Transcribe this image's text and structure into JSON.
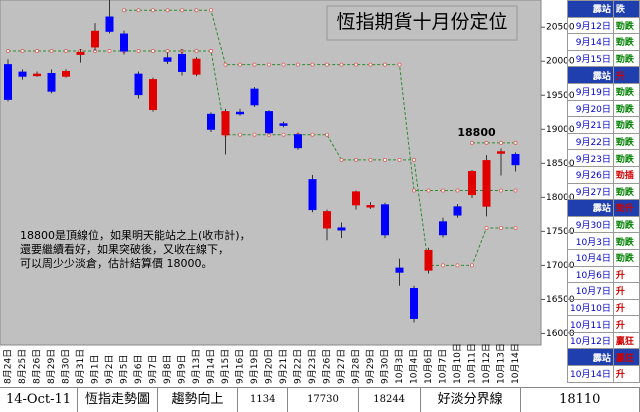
{
  "chart_data": {
    "type": "candlestick",
    "title": "恆指期貨十月份定位",
    "categories": [
      "8月24日",
      "8月25日",
      "8月26日",
      "8月29日",
      "8月30日",
      "8月31日",
      "9月1日",
      "9月2日",
      "9月5日",
      "9月6日",
      "9月7日",
      "9月8日",
      "9月9日",
      "9月13日",
      "9月14日",
      "9月15日",
      "9月16日",
      "9月19日",
      "9月20日",
      "9月21日",
      "9月22日",
      "9月23日",
      "9月26日",
      "9月27日",
      "9月28日",
      "9月29日",
      "9月30日",
      "10月3日",
      "10月4日",
      "10月6日",
      "10月7日",
      "10月10日",
      "10月11日",
      "10月12日",
      "10月13日",
      "10月14日"
    ],
    "open": [
      19950,
      19840,
      19790,
      19820,
      19780,
      20100,
      20210,
      20650,
      20400,
      19810,
      19290,
      20050,
      20100,
      19810,
      19220,
      18920,
      19250,
      19590,
      19260,
      19080,
      18920,
      18260,
      17550,
      17550,
      17890,
      17870,
      17890,
      16960,
      16660,
      16930,
      17640,
      17860,
      18040,
      17870,
      18650,
      18630
    ],
    "high": [
      20030,
      19880,
      19850,
      19880,
      19880,
      20180,
      20560,
      20900,
      20450,
      19850,
      19760,
      20130,
      20180,
      20060,
      19250,
      19300,
      19300,
      19620,
      19280,
      19110,
      18950,
      18330,
      17820,
      17630,
      18100,
      17930,
      17920,
      17100,
      16700,
      17260,
      17700,
      17900,
      18400,
      18620,
      18720,
      18660
    ],
    "low": [
      19410,
      19730,
      19770,
      19530,
      19760,
      19980,
      20150,
      20410,
      20100,
      19450,
      19260,
      19960,
      19790,
      19780,
      18960,
      18630,
      19200,
      19330,
      18920,
      19030,
      18700,
      17780,
      17370,
      17400,
      17820,
      17830,
      17400,
      16700,
      16160,
      16880,
      17410,
      17700,
      17990,
      17720,
      18320,
      18380
    ],
    "close": [
      19440,
      19780,
      19810,
      19560,
      19850,
      20130,
      20440,
      20440,
      20150,
      19510,
      19730,
      20000,
      19850,
      20030,
      19000,
      19260,
      19240,
      19360,
      18950,
      19060,
      18730,
      17820,
      17790,
      17520,
      18080,
      17880,
      17450,
      16900,
      16220,
      17220,
      17450,
      17740,
      18380,
      18540,
      18670,
      18480
    ],
    "up_color": "#e00000",
    "down_color": "#0000ff",
    "lines": [
      {
        "color": "#2e8b2e",
        "values": [
          null,
          null,
          null,
          null,
          null,
          null,
          null,
          null,
          20750,
          20750,
          20750,
          20750,
          20750,
          20750,
          20750,
          19950,
          19950,
          19950,
          19950,
          19950,
          19950,
          19950,
          19950,
          19950,
          19950,
          19950,
          19950,
          19950,
          18100,
          18100,
          18100,
          18100,
          18100,
          18100,
          18100,
          18100
        ]
      },
      {
        "color": "#2e8b2e",
        "values": [
          20150,
          20150,
          20150,
          20150,
          20150,
          20150,
          20150,
          20150,
          20150,
          20150,
          20150,
          20150,
          20150,
          20150,
          20150,
          18920,
          18920,
          18920,
          18920,
          18920,
          18920,
          18920,
          18920,
          18550,
          18550,
          18550,
          18550,
          18550,
          18550,
          17000,
          17000,
          17000,
          17000,
          17550,
          17550,
          17550
        ]
      },
      {
        "color": "#2e8b2e",
        "values": [
          null,
          null,
          null,
          null,
          null,
          null,
          null,
          null,
          null,
          null,
          null,
          null,
          null,
          null,
          null,
          null,
          null,
          null,
          null,
          null,
          null,
          null,
          null,
          null,
          null,
          null,
          null,
          null,
          null,
          null,
          null,
          null,
          18800,
          18800,
          18800,
          18800
        ]
      }
    ],
    "ylim": [
      15830,
      20900
    ],
    "yticks": [
      16000,
      16500,
      17000,
      17500,
      18000,
      18500,
      19000,
      19500,
      20000,
      20500
    ],
    "annotations": [
      {
        "text": "18800",
        "index": 33,
        "value": 18800
      }
    ],
    "note": [
      "18800是頂線位，如果明天能站之上(收市計)，",
      "還要繼續看好，如果突破後，又收在線下，",
      "可以周少少淡倉，估計結算價 18000。"
    ]
  },
  "side_table": {
    "rows": [
      [
        "霹站",
        "跌"
      ],
      [
        "9月12日",
        "勁跌"
      ],
      [
        "9月14日",
        "勁跌"
      ],
      [
        "9月15日",
        "勁跌"
      ],
      [
        "霹站",
        "升"
      ],
      [
        "9月19日",
        "勁跌"
      ],
      [
        "9月20日",
        "勁跌"
      ],
      [
        "9月21日",
        "勁跌"
      ],
      [
        "9月22日",
        "勁跌"
      ],
      [
        "9月23日",
        "勁跌"
      ],
      [
        "9月26日",
        "勁插"
      ],
      [
        "9月27日",
        "勁跌"
      ],
      [
        "霹站",
        "勁升"
      ],
      [
        "9月30日",
        "勁跌"
      ],
      [
        "10月3日",
        "勁跌"
      ],
      [
        "10月4日",
        "勁跌"
      ],
      [
        "10月6日",
        "升"
      ],
      [
        "10月7日",
        "升"
      ],
      [
        "10月10日",
        "升"
      ],
      [
        "10月11日",
        "升"
      ],
      [
        "10月12日",
        "贏狂"
      ],
      [
        "霹站",
        "贏狂"
      ],
      [
        "10月14日",
        "升"
      ]
    ]
  },
  "footer": [
    "14-Oct-11",
    "恆指走勢圖",
    "趨勢向上",
    "1134",
    "17730",
    "18244",
    "好淡分界線",
    "18110"
  ]
}
